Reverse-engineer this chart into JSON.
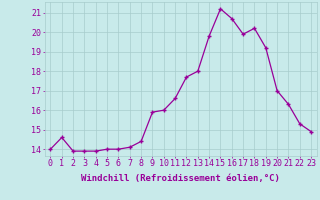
{
  "x": [
    0,
    1,
    2,
    3,
    4,
    5,
    6,
    7,
    8,
    9,
    10,
    11,
    12,
    13,
    14,
    15,
    16,
    17,
    18,
    19,
    20,
    21,
    22,
    23
  ],
  "y": [
    14.0,
    14.6,
    13.9,
    13.9,
    13.9,
    14.0,
    14.0,
    14.1,
    14.4,
    15.9,
    16.0,
    16.6,
    17.7,
    18.0,
    19.8,
    21.2,
    20.7,
    19.9,
    20.2,
    19.2,
    17.0,
    16.3,
    15.3,
    14.9
  ],
  "line_color": "#990099",
  "marker": "+",
  "marker_size": 3,
  "marker_lw": 1.0,
  "bg_color": "#c8eaea",
  "grid_color": "#a8cccc",
  "xlabel": "Windchill (Refroidissement éolien,°C)",
  "ylabel_ticks": [
    14,
    15,
    16,
    17,
    18,
    19,
    20,
    21
  ],
  "xtick_labels": [
    "0",
    "1",
    "2",
    "3",
    "4",
    "5",
    "6",
    "7",
    "8",
    "9",
    "10",
    "11",
    "12",
    "13",
    "14",
    "15",
    "16",
    "17",
    "18",
    "19",
    "20",
    "21",
    "22",
    "23"
  ],
  "ylim": [
    13.65,
    21.55
  ],
  "xlim": [
    -0.5,
    23.5
  ],
  "tick_color": "#990099",
  "label_color": "#990099",
  "tick_fontsize": 6.0,
  "xlabel_fontsize": 6.5,
  "linewidth": 0.9
}
